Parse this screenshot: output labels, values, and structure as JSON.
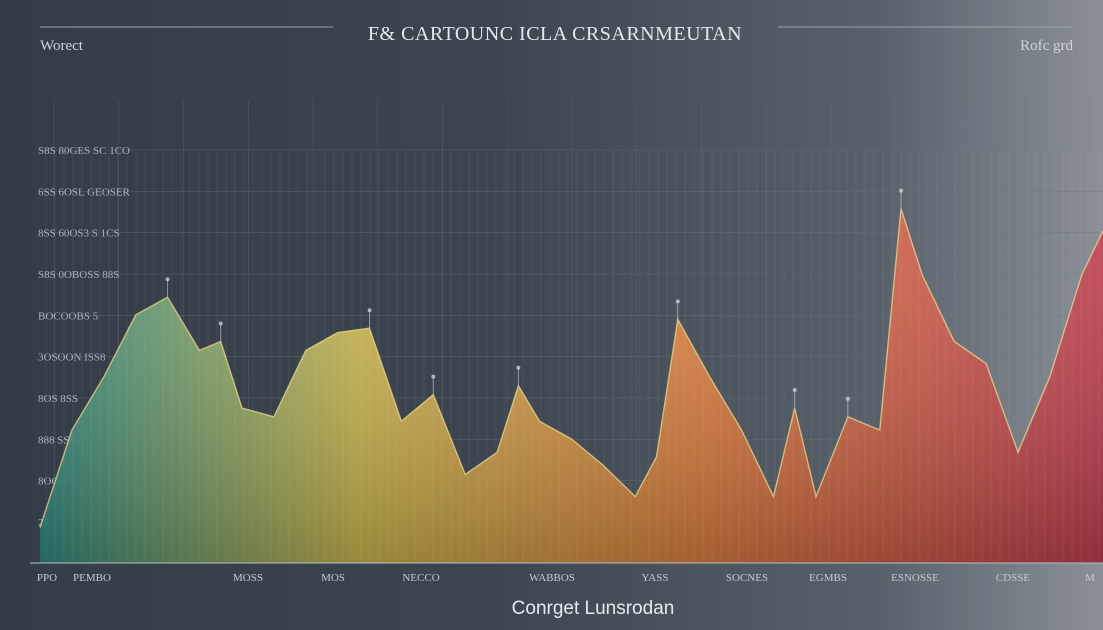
{
  "chart_data": {
    "type": "area",
    "title": "F& CARTOUNC ICLA CRSARNMEUTAN",
    "top_left_label": "Worect",
    "top_right_label": "Rofc grd",
    "xlabel": "Conrget Lunsrodan",
    "ylabel": "",
    "y_tick_labels": [
      "S8S 80GES SC 1CO",
      "6SS 6OSL GEOSER",
      "8SS 60OS3 S 1CS",
      "S8S 0OBOSS 88S",
      "BOCOOBS 5",
      "3OSOON ISS8",
      "8OS 8SS",
      "888 SSS",
      "8OCO",
      "2S"
    ],
    "x_tick_labels": [
      "PPO",
      "PEMBO",
      "MOSS",
      "MOS",
      "NECCO",
      "WABBOS",
      "YASS",
      "SOCNES",
      "EGMBS",
      "ESNOSSE",
      "CDSSE",
      "M"
    ],
    "grid": true,
    "colors": {
      "start": "#2f8f86",
      "yellow": "#d6c04e",
      "orange": "#e8823e",
      "red": "#c2374a"
    },
    "x": [
      0,
      3,
      6,
      9,
      12,
      15,
      17,
      19,
      22,
      25,
      28,
      31,
      34,
      37,
      40,
      43,
      45,
      47,
      50,
      53,
      56,
      58,
      60,
      63,
      66,
      69,
      71,
      73,
      76,
      79,
      81,
      83,
      86,
      89,
      92,
      95,
      98,
      100
    ],
    "values": [
      8,
      30,
      42,
      56,
      60,
      48,
      50,
      35,
      33,
      48,
      52,
      53,
      32,
      38,
      20,
      25,
      40,
      32,
      28,
      22,
      15,
      24,
      55,
      42,
      30,
      15,
      35,
      15,
      33,
      30,
      80,
      65,
      50,
      45,
      25,
      42,
      65,
      75
    ],
    "ylim": [
      0,
      100
    ]
  }
}
